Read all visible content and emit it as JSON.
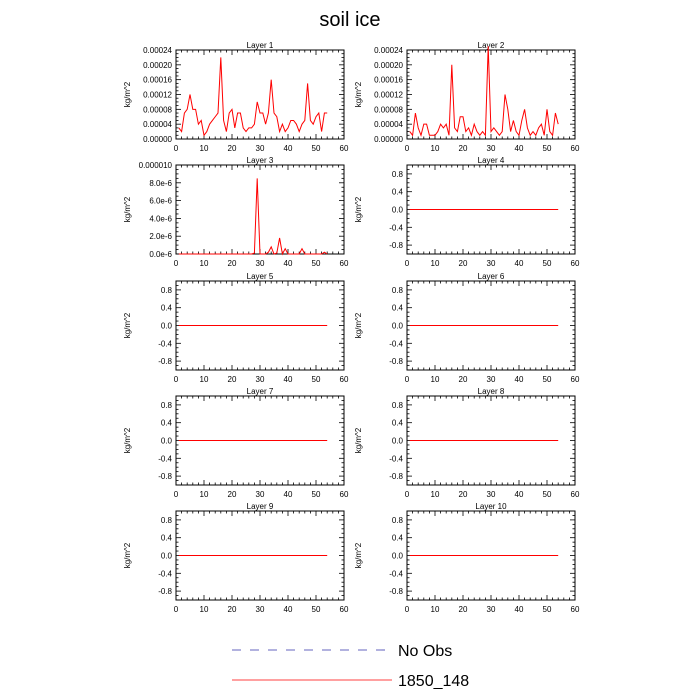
{
  "title": "soil ice",
  "legend": [
    {
      "label": "No Obs",
      "style": "dashed",
      "color": "#3333aa"
    },
    {
      "label": "1850_148",
      "style": "solid",
      "color": "#ff0000"
    }
  ],
  "colors": {
    "series": "#ff0000",
    "axis": "#000000"
  },
  "chart_data": [
    {
      "type": "line",
      "title": "Layer 1",
      "ylabel": "kg/m^2",
      "xlim": [
        0,
        60
      ],
      "ylim": [
        0,
        0.00024
      ],
      "xticks": [
        "0",
        "10",
        "20",
        "30",
        "40",
        "50",
        "60"
      ],
      "yticks": [
        "0.00000",
        "0.00004",
        "0.00008",
        "0.00012",
        "0.00016",
        "0.00020",
        "0.00024"
      ],
      "series": [
        {
          "name": "1850_148",
          "color": "#ff0000",
          "x": [
            1,
            2,
            3,
            4,
            5,
            6,
            7,
            8,
            9,
            10,
            11,
            12,
            13,
            14,
            15,
            16,
            17,
            18,
            19,
            20,
            21,
            22,
            23,
            24,
            25,
            26,
            27,
            28,
            29,
            30,
            31,
            32,
            33,
            34,
            35,
            36,
            37,
            38,
            39,
            40,
            41,
            42,
            43,
            44,
            45,
            46,
            47,
            48,
            49,
            50,
            51,
            52,
            53,
            54
          ],
          "y": [
            3e-05,
            2e-05,
            7e-05,
            8e-05,
            0.00012,
            8e-05,
            8e-05,
            4e-05,
            5e-05,
            1e-05,
            2e-05,
            4e-05,
            5e-05,
            6e-05,
            7e-05,
            0.00022,
            5e-05,
            2e-05,
            7e-05,
            8e-05,
            3e-05,
            7e-05,
            7e-05,
            3e-05,
            2e-05,
            3e-05,
            3e-05,
            4e-05,
            0.0001,
            7e-05,
            7e-05,
            4e-05,
            7e-05,
            0.00016,
            7e-05,
            6e-05,
            2e-05,
            4e-05,
            2e-05,
            3e-05,
            5e-05,
            5e-05,
            4e-05,
            2e-05,
            4e-05,
            5e-05,
            0.00015,
            5e-05,
            4e-05,
            6e-05,
            7e-05,
            2e-05,
            7e-05,
            7e-05
          ]
        }
      ]
    },
    {
      "type": "line",
      "title": "Layer 2",
      "ylabel": "kg/m^2",
      "xlim": [
        0,
        60
      ],
      "ylim": [
        0,
        0.00024
      ],
      "xticks": [
        "0",
        "10",
        "20",
        "30",
        "40",
        "50",
        "60"
      ],
      "yticks": [
        "0.00000",
        "0.00004",
        "0.00008",
        "0.00012",
        "0.00016",
        "0.00020",
        "0.00024"
      ],
      "series": [
        {
          "name": "1850_148",
          "color": "#ff0000",
          "x": [
            1,
            2,
            3,
            4,
            5,
            6,
            7,
            8,
            9,
            10,
            11,
            12,
            13,
            14,
            15,
            16,
            17,
            18,
            19,
            20,
            21,
            22,
            23,
            24,
            25,
            26,
            27,
            28,
            29,
            30,
            31,
            32,
            33,
            34,
            35,
            36,
            37,
            38,
            39,
            40,
            41,
            42,
            43,
            44,
            45,
            46,
            47,
            48,
            49,
            50,
            51,
            52,
            53,
            54
          ],
          "y": [
            2e-05,
            1e-05,
            7e-05,
            3e-05,
            1e-05,
            4e-05,
            4e-05,
            1e-05,
            1e-05,
            1e-05,
            2e-05,
            4e-05,
            3e-05,
            4e-05,
            1e-05,
            0.0002,
            3e-05,
            2e-05,
            6e-05,
            6e-05,
            2e-05,
            3e-05,
            1e-05,
            4e-05,
            2e-05,
            1e-05,
            2e-05,
            1e-05,
            0.00025,
            2e-05,
            3e-05,
            2e-05,
            1e-05,
            2e-05,
            0.00012,
            8e-05,
            2e-05,
            5e-05,
            2e-05,
            1e-05,
            5e-05,
            8e-05,
            3e-05,
            1e-05,
            2e-05,
            1e-05,
            3e-05,
            4e-05,
            1e-05,
            8e-05,
            2e-05,
            1e-05,
            7e-05,
            4e-05
          ]
        }
      ]
    },
    {
      "type": "line",
      "title": "Layer 3",
      "ylabel": "kg/m^2",
      "xlim": [
        0,
        60
      ],
      "ylim": [
        0,
        1e-05
      ],
      "xticks": [
        "0",
        "10",
        "20",
        "30",
        "40",
        "50",
        "60"
      ],
      "yticks": [
        "0.0e-6",
        "2.0e-6",
        "4.0e-6",
        "6.0e-6",
        "8.0e-6",
        "0.000010"
      ],
      "series": [
        {
          "name": "1850_148",
          "color": "#ff0000",
          "x": [
            1,
            26,
            27,
            28,
            29,
            30,
            31,
            32,
            33,
            34,
            35,
            36,
            37,
            38,
            39,
            40,
            41,
            42,
            43,
            44,
            45,
            46,
            47,
            48,
            49,
            50,
            51,
            52,
            53,
            54
          ],
          "y": [
            0,
            0,
            0,
            1e-07,
            8.5e-06,
            0,
            0,
            0,
            2e-07,
            8e-07,
            0,
            1e-07,
            1.8e-06,
            0,
            6e-07,
            0,
            0,
            0,
            0,
            0,
            6e-07,
            0,
            0,
            0,
            0,
            0,
            0,
            0,
            2e-07,
            0
          ]
        }
      ]
    },
    {
      "type": "line",
      "title": "Layer 4",
      "ylabel": "kg/m^2",
      "xlim": [
        0,
        60
      ],
      "ylim": [
        -1,
        1
      ],
      "xticks": [
        "0",
        "10",
        "20",
        "30",
        "40",
        "50",
        "60"
      ],
      "yticks": [
        "-0.8",
        "-0.4",
        "0.0",
        "0.4",
        "0.8"
      ],
      "series": [
        {
          "name": "1850_148",
          "color": "#ff0000",
          "x": [
            1,
            54
          ],
          "y": [
            0,
            0
          ]
        }
      ]
    },
    {
      "type": "line",
      "title": "Layer 5",
      "ylabel": "kg/m^2",
      "xlim": [
        0,
        60
      ],
      "ylim": [
        -1,
        1
      ],
      "xticks": [
        "0",
        "10",
        "20",
        "30",
        "40",
        "50",
        "60"
      ],
      "yticks": [
        "-0.8",
        "-0.4",
        "0.0",
        "0.4",
        "0.8"
      ],
      "series": [
        {
          "name": "1850_148",
          "color": "#ff0000",
          "x": [
            1,
            54
          ],
          "y": [
            0,
            0
          ]
        }
      ]
    },
    {
      "type": "line",
      "title": "Layer 6",
      "ylabel": "kg/m^2",
      "xlim": [
        0,
        60
      ],
      "ylim": [
        -1,
        1
      ],
      "xticks": [
        "0",
        "10",
        "20",
        "30",
        "40",
        "50",
        "60"
      ],
      "yticks": [
        "-0.8",
        "-0.4",
        "0.0",
        "0.4",
        "0.8"
      ],
      "series": [
        {
          "name": "1850_148",
          "color": "#ff0000",
          "x": [
            1,
            54
          ],
          "y": [
            0,
            0
          ]
        }
      ]
    },
    {
      "type": "line",
      "title": "Layer 7",
      "ylabel": "kg/m^2",
      "xlim": [
        0,
        60
      ],
      "ylim": [
        -1,
        1
      ],
      "xticks": [
        "0",
        "10",
        "20",
        "30",
        "40",
        "50",
        "60"
      ],
      "yticks": [
        "-0.8",
        "-0.4",
        "0.0",
        "0.4",
        "0.8"
      ],
      "series": [
        {
          "name": "1850_148",
          "color": "#ff0000",
          "x": [
            1,
            54
          ],
          "y": [
            0,
            0
          ]
        }
      ]
    },
    {
      "type": "line",
      "title": "Layer 8",
      "ylabel": "kg/m^2",
      "xlim": [
        0,
        60
      ],
      "ylim": [
        -1,
        1
      ],
      "xticks": [
        "0",
        "10",
        "20",
        "30",
        "40",
        "50",
        "60"
      ],
      "yticks": [
        "-0.8",
        "-0.4",
        "0.0",
        "0.4",
        "0.8"
      ],
      "series": [
        {
          "name": "1850_148",
          "color": "#ff0000",
          "x": [
            1,
            54
          ],
          "y": [
            0,
            0
          ]
        }
      ]
    },
    {
      "type": "line",
      "title": "Layer 9",
      "ylabel": "kg/m^2",
      "xlim": [
        0,
        60
      ],
      "ylim": [
        -1,
        1
      ],
      "xticks": [
        "0",
        "10",
        "20",
        "30",
        "40",
        "50",
        "60"
      ],
      "yticks": [
        "-0.8",
        "-0.4",
        "0.0",
        "0.4",
        "0.8"
      ],
      "series": [
        {
          "name": "1850_148",
          "color": "#ff0000",
          "x": [
            1,
            54
          ],
          "y": [
            0,
            0
          ]
        }
      ]
    },
    {
      "type": "line",
      "title": "Layer 10",
      "ylabel": "kg/m^2",
      "xlim": [
        0,
        60
      ],
      "ylim": [
        -1,
        1
      ],
      "xticks": [
        "0",
        "10",
        "20",
        "30",
        "40",
        "50",
        "60"
      ],
      "yticks": [
        "-0.8",
        "-0.4",
        "0.0",
        "0.4",
        "0.8"
      ],
      "series": [
        {
          "name": "1850_148",
          "color": "#ff0000",
          "x": [
            1,
            54
          ],
          "y": [
            0,
            0
          ]
        }
      ]
    }
  ]
}
